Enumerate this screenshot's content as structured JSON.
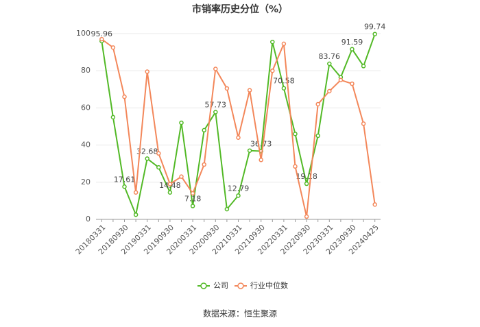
{
  "chart_data": {
    "type": "line",
    "title": "市销率历史分位（%）",
    "categories": [
      "20180331",
      null,
      "20180930",
      null,
      "20190331",
      null,
      "20190930",
      null,
      "20200331",
      null,
      "20200930",
      null,
      "20210331",
      null,
      "20210930",
      null,
      "20220331",
      null,
      "20220930",
      null,
      "20230331",
      null,
      "20230930",
      null,
      "20240425"
    ],
    "series": [
      {
        "name": "公司",
        "color": "#52b926",
        "values": [
          95.96,
          55,
          17.61,
          2.5,
          32.68,
          28,
          14.48,
          52,
          7.18,
          48,
          57.73,
          5.5,
          12.79,
          37,
          36.73,
          95.5,
          70.58,
          46,
          19.18,
          45,
          83.76,
          76.5,
          91.59,
          82.5,
          99.74
        ]
      },
      {
        "name": "行业中位数",
        "color": "#f3875a",
        "values": [
          97,
          92.5,
          66,
          14.5,
          79.5,
          35.5,
          19,
          23,
          14,
          29.5,
          81,
          70.5,
          44,
          69.5,
          32,
          80,
          94.5,
          28.5,
          1.5,
          62,
          69,
          75,
          73,
          51.5,
          8
        ]
      }
    ],
    "ylim": [
      0,
      100
    ],
    "yticks": [
      0,
      20,
      40,
      60,
      80,
      100
    ],
    "grid": true,
    "legend": "bottom",
    "source": "数据来源：恒生聚源"
  }
}
